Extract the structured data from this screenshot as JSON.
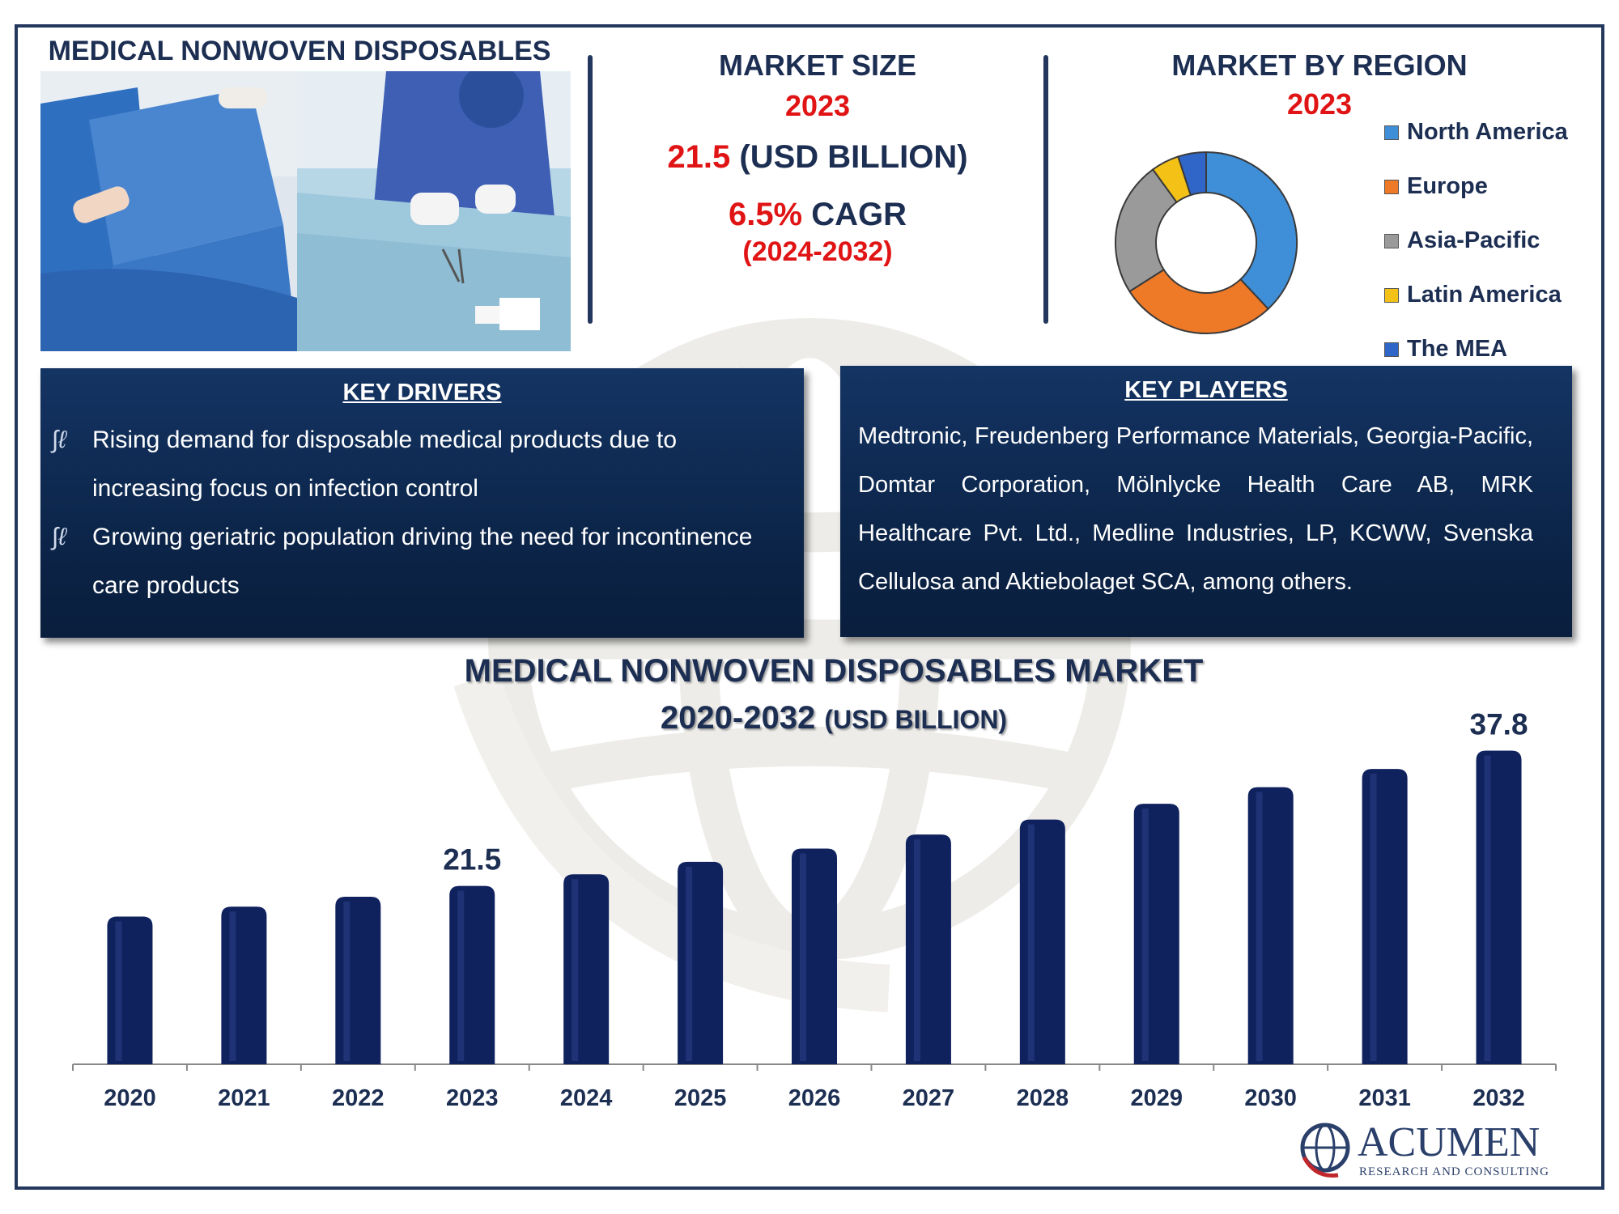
{
  "header": {
    "product_title": "MEDICAL NONWOVEN DISPOSABLES"
  },
  "market_size": {
    "title": "MARKET SIZE",
    "year": "2023",
    "value": "21.5",
    "unit": "(USD BILLION)",
    "cagr_value": "6.5%",
    "cagr_label": "CAGR",
    "cagr_period": "(2024-2032)"
  },
  "region": {
    "title": "MARKET BY REGION",
    "year": "2023",
    "segments": [
      {
        "name": "North America",
        "share": 38,
        "color": "#3f8fd8"
      },
      {
        "name": "Europe",
        "share": 28,
        "color": "#ee7a28"
      },
      {
        "name": "Asia-Pacific",
        "share": 24,
        "color": "#9a9a9a"
      },
      {
        "name": "Latin America",
        "share": 5,
        "color": "#f4c216"
      },
      {
        "name": "The MEA",
        "share": 5,
        "color": "#2f66c8"
      }
    ]
  },
  "key_drivers": {
    "title": "KEY DRIVERS",
    "items": [
      {
        "line1": "Rising demand for disposable medical products due to",
        "line2": "increasing focus on infection control"
      },
      {
        "line1": "Growing geriatric population driving the need for incontinence",
        "line2": "care products"
      }
    ]
  },
  "key_players": {
    "title": "KEY PLAYERS",
    "text": "Medtronic, Freudenberg Performance Materials, Georgia-Pacific, Domtar Corporation, Mölnlycke Health Care AB, MRK Healthcare Pvt. Ltd., Medline Industries, LP, KCWW, Svenska Cellulosa and Aktiebolaget SCA, among others."
  },
  "chart_title": {
    "line1": "MEDICAL NONWOVEN DISPOSABLES MARKET",
    "line2_main": "2020-2032",
    "line2_unit": "(USD BILLION)"
  },
  "chart_data": {
    "type": "bar",
    "categories": [
      "2020",
      "2021",
      "2022",
      "2023",
      "2024",
      "2025",
      "2026",
      "2027",
      "2028",
      "2029",
      "2030",
      "2031",
      "2032"
    ],
    "values": [
      17.8,
      19.0,
      20.2,
      21.5,
      22.9,
      24.4,
      26.0,
      27.7,
      29.5,
      31.4,
      33.4,
      35.6,
      37.8
    ],
    "data_labels": {
      "2023": "21.5",
      "2032": "37.8"
    },
    "bar_color": "#10225e",
    "ylim": [
      0,
      40
    ],
    "grid": false
  },
  "logo": {
    "name": "ACUMEN",
    "tagline": "RESEARCH AND CONSULTING"
  }
}
